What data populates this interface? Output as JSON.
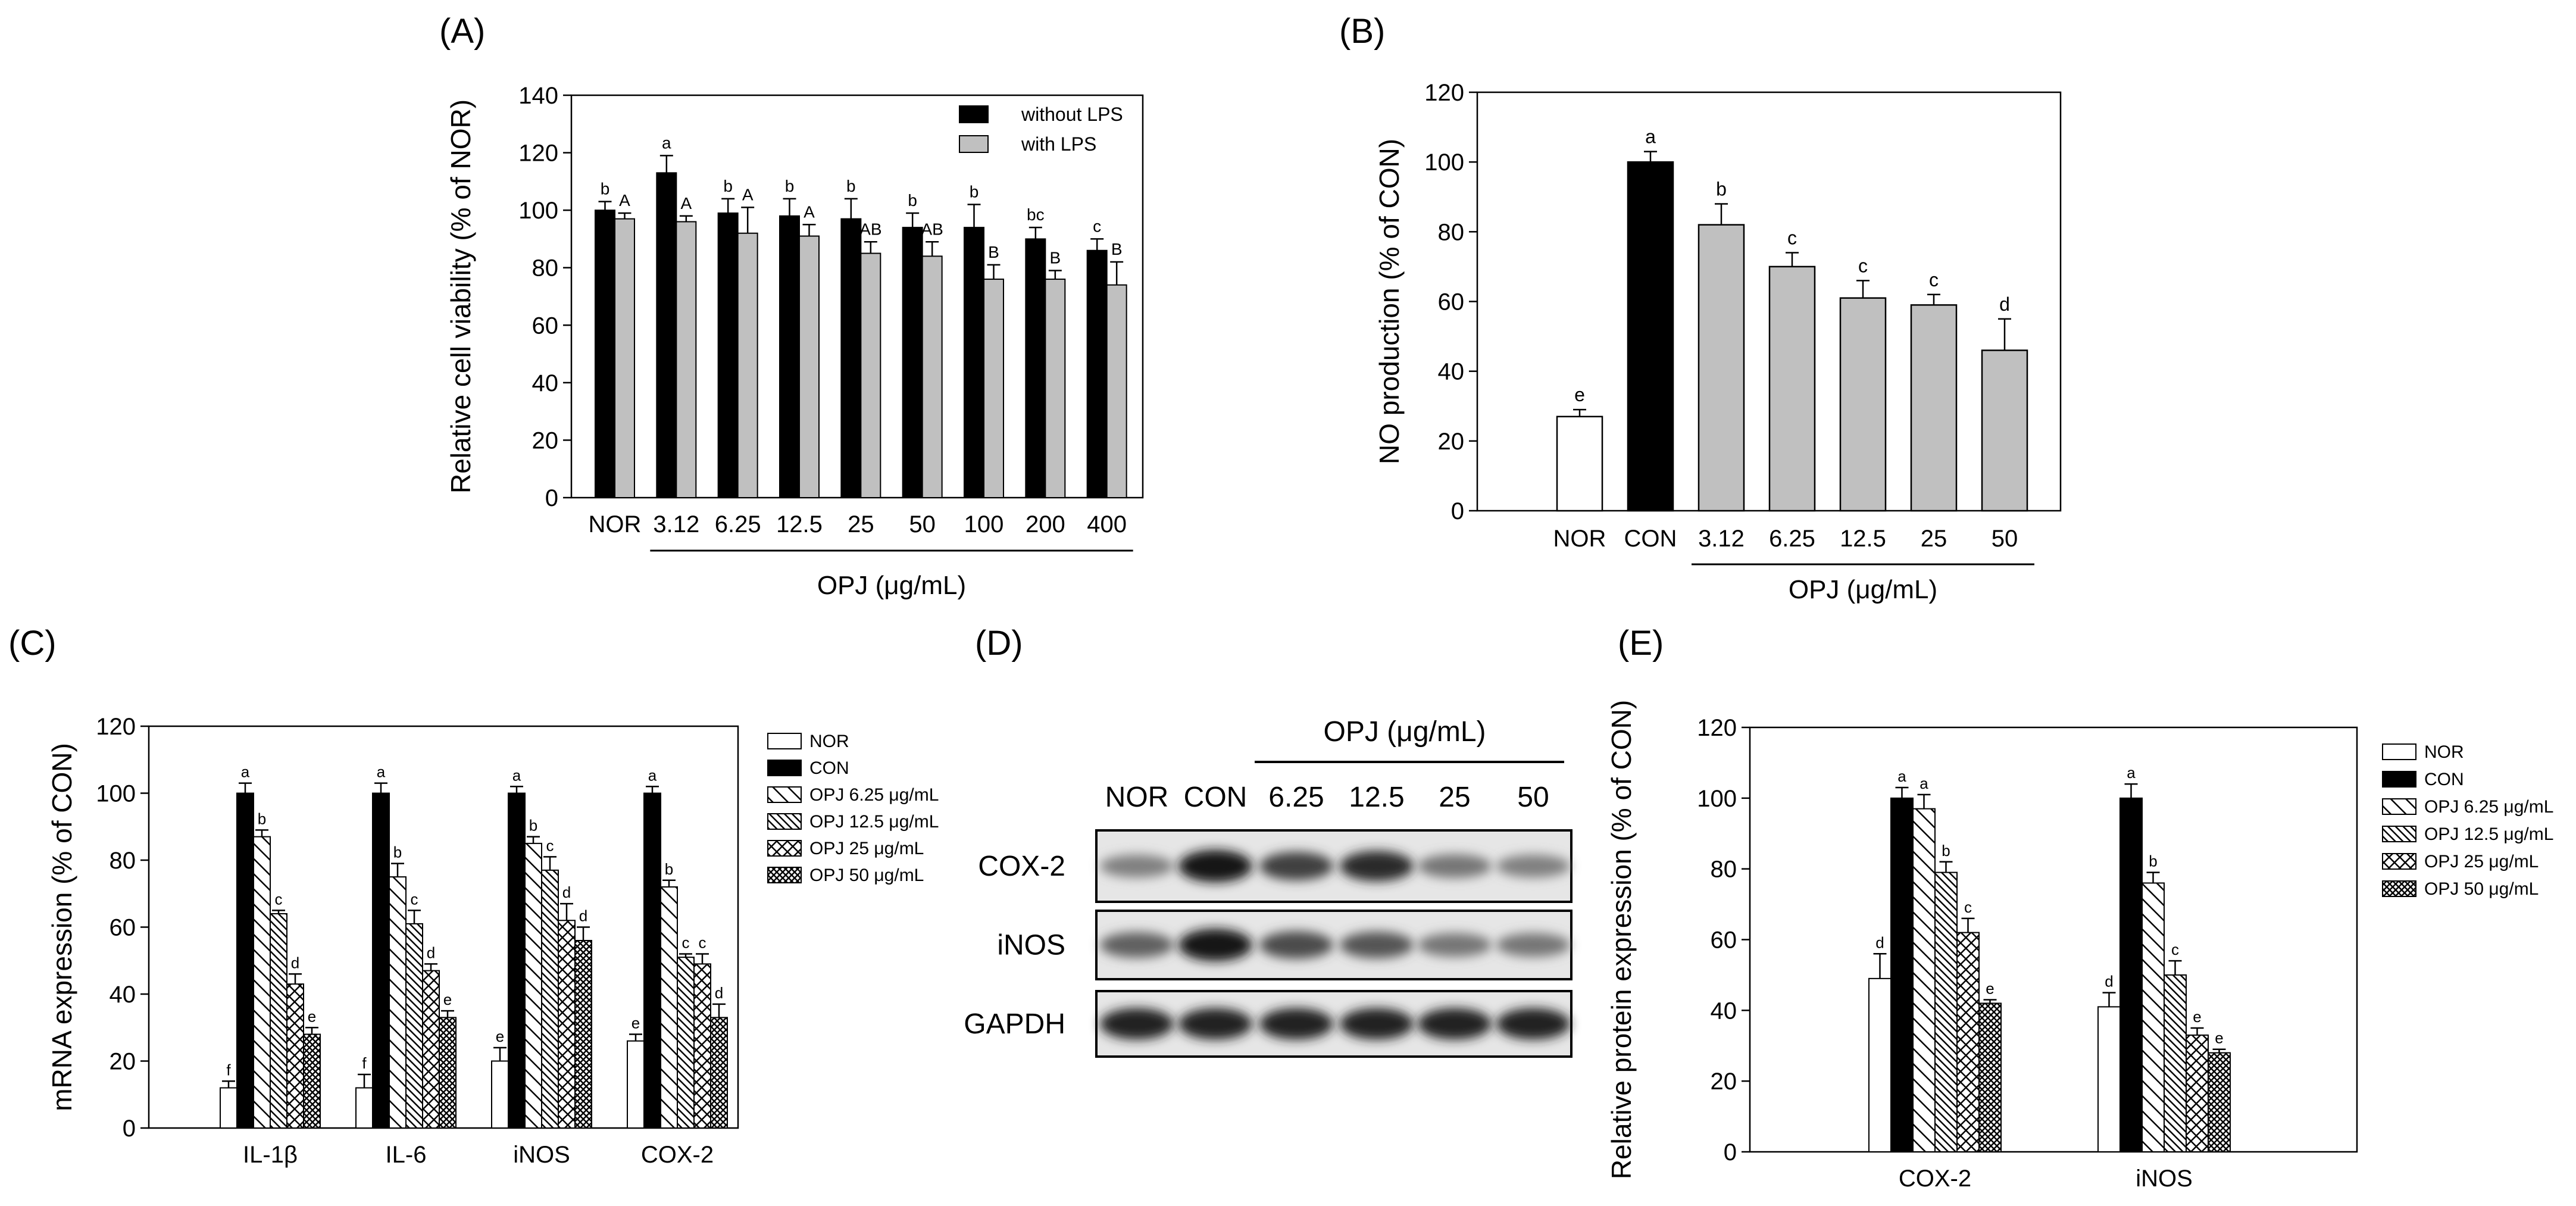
{
  "panels": {
    "A": "(A)",
    "B": "(B)",
    "C": "(C)",
    "D": "(D)",
    "E": "(E)"
  },
  "chart_data": [
    {
      "id": "A",
      "type": "bar",
      "ylabel": "Relative cell viability (% of NOR)",
      "xlabel": "OPJ (μg/mL)",
      "ylim": [
        0,
        140
      ],
      "yticks": [
        0,
        20,
        40,
        60,
        80,
        100,
        120,
        140
      ],
      "categories": [
        "NOR",
        "3.12",
        "6.25",
        "12.5",
        "25",
        "50",
        "100",
        "200",
        "400"
      ],
      "legend_position": "top-right",
      "series": [
        {
          "name": "without LPS",
          "color": "#000000",
          "values": [
            100,
            113,
            99,
            98,
            97,
            94,
            94,
            90,
            86
          ],
          "errors": [
            3,
            6,
            5,
            6,
            7,
            5,
            8,
            4,
            4
          ],
          "labels": [
            "b",
            "a",
            "b",
            "b",
            "b",
            "b",
            "b",
            "bc",
            "c"
          ]
        },
        {
          "name": "with LPS",
          "color": "#c0c0c0",
          "values": [
            97,
            96,
            92,
            91,
            85,
            84,
            76,
            76,
            74
          ],
          "errors": [
            2,
            2,
            9,
            4,
            4,
            5,
            5,
            3,
            8
          ],
          "labels": [
            "A",
            "A",
            "A",
            "A",
            "AB",
            "AB",
            "B",
            "B",
            "B"
          ]
        }
      ]
    },
    {
      "id": "B",
      "type": "bar",
      "ylabel": "NO production (% of CON)",
      "xlabel": "OPJ (μg/mL)",
      "ylim": [
        0,
        120
      ],
      "yticks": [
        0,
        20,
        40,
        60,
        80,
        100,
        120
      ],
      "categories": [
        "NOR",
        "CON",
        "3.12",
        "6.25",
        "12.5",
        "25",
        "50"
      ],
      "values": [
        27,
        100,
        82,
        70,
        61,
        59,
        46
      ],
      "errors": [
        2,
        3,
        6,
        4,
        5,
        3,
        9
      ],
      "labels": [
        "e",
        "a",
        "b",
        "c",
        "c",
        "c",
        "d"
      ],
      "colors": [
        "#ffffff",
        "#000000",
        "#c0c0c0",
        "#c0c0c0",
        "#c0c0c0",
        "#c0c0c0",
        "#c0c0c0"
      ]
    },
    {
      "id": "C",
      "type": "bar",
      "ylabel": "mRNA expression  (% of CON)",
      "ylim": [
        0,
        120
      ],
      "yticks": [
        0,
        20,
        40,
        60,
        80,
        100,
        120
      ],
      "categories": [
        "IL-1β",
        "IL-6",
        "iNOS",
        "COX-2"
      ],
      "legend_position": "right",
      "series": [
        {
          "name": "NOR",
          "pattern": "white",
          "values": [
            12,
            12,
            20,
            26
          ],
          "errors": [
            2,
            4,
            4,
            2
          ],
          "labels": [
            "f",
            "f",
            "e",
            "e"
          ]
        },
        {
          "name": "CON",
          "pattern": "black",
          "values": [
            100,
            100,
            100,
            100
          ],
          "errors": [
            3,
            3,
            2,
            2
          ],
          "labels": [
            "a",
            "a",
            "a",
            "a"
          ]
        },
        {
          "name": "OPJ 6.25 μg/mL",
          "pattern": "sparse-diagonal",
          "values": [
            87,
            75,
            85,
            72
          ],
          "errors": [
            2,
            4,
            2,
            2
          ],
          "labels": [
            "b",
            "b",
            "b",
            "b"
          ]
        },
        {
          "name": "OPJ 12.5 μg/mL",
          "pattern": "dense-diagonal",
          "values": [
            64,
            61,
            77,
            51
          ],
          "errors": [
            1,
            4,
            4,
            1
          ],
          "labels": [
            "c",
            "c",
            "c",
            "c"
          ]
        },
        {
          "name": "OPJ 25 μg/mL",
          "pattern": "cross-hatch",
          "values": [
            43,
            47,
            62,
            49
          ],
          "errors": [
            3,
            2,
            5,
            3
          ],
          "labels": [
            "d",
            "d",
            "d",
            "c"
          ]
        },
        {
          "name": "OPJ 50 μg/mL",
          "pattern": "dense-crosshatch",
          "values": [
            28,
            33,
            56,
            33
          ],
          "errors": [
            2,
            2,
            4,
            4
          ],
          "labels": [
            "e",
            "e",
            "d",
            "d"
          ]
        }
      ]
    },
    {
      "id": "E",
      "type": "bar",
      "ylabel": "Relative protein expression (% of CON)",
      "ylim": [
        0,
        120
      ],
      "yticks": [
        0,
        20,
        40,
        60,
        80,
        100,
        120
      ],
      "categories": [
        "COX-2",
        "iNOS"
      ],
      "legend_position": "right",
      "series": [
        {
          "name": "NOR",
          "pattern": "white",
          "values": [
            49,
            41
          ],
          "errors": [
            7,
            4
          ],
          "labels": [
            "d",
            "d"
          ]
        },
        {
          "name": "CON",
          "pattern": "black",
          "values": [
            100,
            100
          ],
          "errors": [
            3,
            4
          ],
          "labels": [
            "a",
            "a"
          ]
        },
        {
          "name": "OPJ 6.25 μg/mL",
          "pattern": "sparse-diagonal",
          "values": [
            97,
            76
          ],
          "errors": [
            4,
            3
          ],
          "labels": [
            "a",
            "b"
          ]
        },
        {
          "name": "OPJ 12.5 μg/mL",
          "pattern": "dense-diagonal",
          "values": [
            79,
            50
          ],
          "errors": [
            3,
            4
          ],
          "labels": [
            "b",
            "c"
          ]
        },
        {
          "name": "OPJ 25 μg/mL",
          "pattern": "cross-hatch",
          "values": [
            62,
            33
          ],
          "errors": [
            4,
            2
          ],
          "labels": [
            "c",
            "e"
          ]
        },
        {
          "name": "OPJ 50 μg/mL",
          "pattern": "dense-crosshatch",
          "values": [
            42,
            28
          ],
          "errors": [
            1,
            1
          ],
          "labels": [
            "e",
            "e"
          ]
        }
      ]
    }
  ],
  "western_blot": {
    "header": "OPJ (μg/mL)",
    "lanes": [
      "NOR",
      "CON",
      "6.25",
      "12.5",
      "25",
      "50"
    ],
    "rows": [
      {
        "name": "COX-2",
        "intensity": [
          0.45,
          0.95,
          0.75,
          0.85,
          0.5,
          0.45
        ]
      },
      {
        "name": "iNOS",
        "intensity": [
          0.6,
          0.95,
          0.7,
          0.65,
          0.5,
          0.5
        ]
      },
      {
        "name": "GAPDH",
        "intensity": [
          0.9,
          0.9,
          0.9,
          0.9,
          0.9,
          0.9
        ]
      }
    ]
  }
}
